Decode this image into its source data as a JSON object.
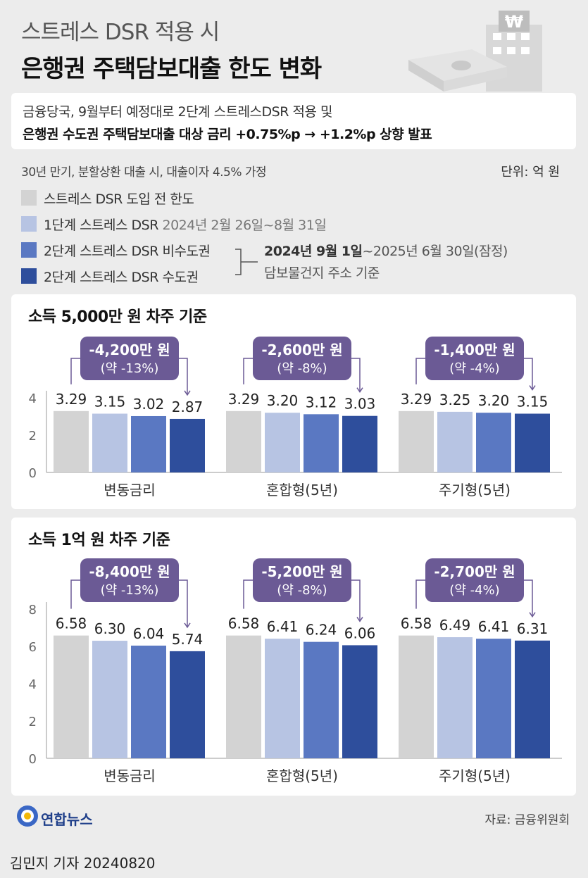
{
  "title_line1": "스트레스 DSR 적용 시",
  "title_line2": "은행권 주택담보대출 한도 변화",
  "summary_line1": "금융당국, 9월부터 예정대로 2단계 스트레스DSR 적용 및",
  "summary_line2": "은행권 수도권 주택담보대출 대상 금리 +0.75%p → +1.2%p 상향 발표",
  "assumption": "30년 만기, 분할상환 대출 시, 대출이자 4.5% 가정",
  "unit": "단위: 억 원",
  "legend": [
    {
      "label": "스트레스 DSR 도입 전 한도",
      "sub": "",
      "color": "#d3d3d3"
    },
    {
      "label": "1단계 스트레스 DSR",
      "sub": "2024년 2월 26일~8월 31일",
      "color": "#b7c4e3"
    },
    {
      "label": "2단계 스트레스 DSR 비수도권",
      "sub": "",
      "color": "#5a78c2"
    },
    {
      "label": "2단계 스트레스 DSR 수도권",
      "sub": "",
      "color": "#2e4e9c"
    }
  ],
  "legend_note_bold": "2024년 9월 1일",
  "legend_note_rest": "~2025년 6월 30일(잠정)",
  "legend_note_line2": "담보물건지 주소 기준",
  "colors": {
    "s0": "#d3d3d3",
    "s1": "#b7c4e3",
    "s2": "#5a78c2",
    "s3": "#2e4e9c",
    "callout": "#6b5a95"
  },
  "chart_data": [
    {
      "type": "bar",
      "title": "소득 5,000만 원 차주 기준",
      "categories": [
        "변동금리",
        "혼합형(5년)",
        "주기형(5년)"
      ],
      "series": [
        {
          "name": "스트레스 DSR 도입 전 한도",
          "values": [
            3.29,
            3.29,
            3.29
          ]
        },
        {
          "name": "1단계 스트레스 DSR",
          "values": [
            3.15,
            3.2,
            3.25
          ]
        },
        {
          "name": "2단계 스트레스 DSR 비수도권",
          "values": [
            3.02,
            3.12,
            3.2
          ]
        },
        {
          "name": "2단계 스트레스 DSR 수도권",
          "values": [
            2.87,
            3.03,
            3.15
          ]
        }
      ],
      "labels": [
        [
          "3.29",
          "3.15",
          "3.02",
          "2.87"
        ],
        [
          "3.29",
          "3.20",
          "3.12",
          "3.03"
        ],
        [
          "3.29",
          "3.25",
          "3.20",
          "3.15"
        ]
      ],
      "ylim": [
        0,
        4
      ],
      "yticks": [
        "0",
        "2",
        "4"
      ],
      "callouts": [
        {
          "line1": "-4,200만 원",
          "line2": "(약 -13%)"
        },
        {
          "line1": "-2,600만 원",
          "line2": "(약 -8%)"
        },
        {
          "line1": "-1,400만 원",
          "line2": "(약 -4%)"
        }
      ]
    },
    {
      "type": "bar",
      "title": "소득 1억 원 차주 기준",
      "categories": [
        "변동금리",
        "혼합형(5년)",
        "주기형(5년)"
      ],
      "series": [
        {
          "name": "스트레스 DSR 도입 전 한도",
          "values": [
            6.58,
            6.58,
            6.58
          ]
        },
        {
          "name": "1단계 스트레스 DSR",
          "values": [
            6.3,
            6.41,
            6.49
          ]
        },
        {
          "name": "2단계 스트레스 DSR 비수도권",
          "values": [
            6.04,
            6.24,
            6.41
          ]
        },
        {
          "name": "2단계 스트레스 DSR 수도권",
          "values": [
            5.74,
            6.06,
            6.31
          ]
        }
      ],
      "labels": [
        [
          "6.58",
          "6.30",
          "6.04",
          "5.74"
        ],
        [
          "6.58",
          "6.41",
          "6.24",
          "6.06"
        ],
        [
          "6.58",
          "6.49",
          "6.41",
          "6.31"
        ]
      ],
      "ylim": [
        0,
        8
      ],
      "yticks": [
        "0",
        "2",
        "4",
        "6",
        "8"
      ],
      "callouts": [
        {
          "line1": "-8,400만 원",
          "line2": "(약 -13%)"
        },
        {
          "line1": "-5,200만 원",
          "line2": "(약 -8%)"
        },
        {
          "line1": "-2,700만 원",
          "line2": "(약 -4%)"
        }
      ]
    }
  ],
  "source": "자료: 금융위원회",
  "logo_text": "연합뉴스",
  "byline": "김민지 기자  20240820"
}
